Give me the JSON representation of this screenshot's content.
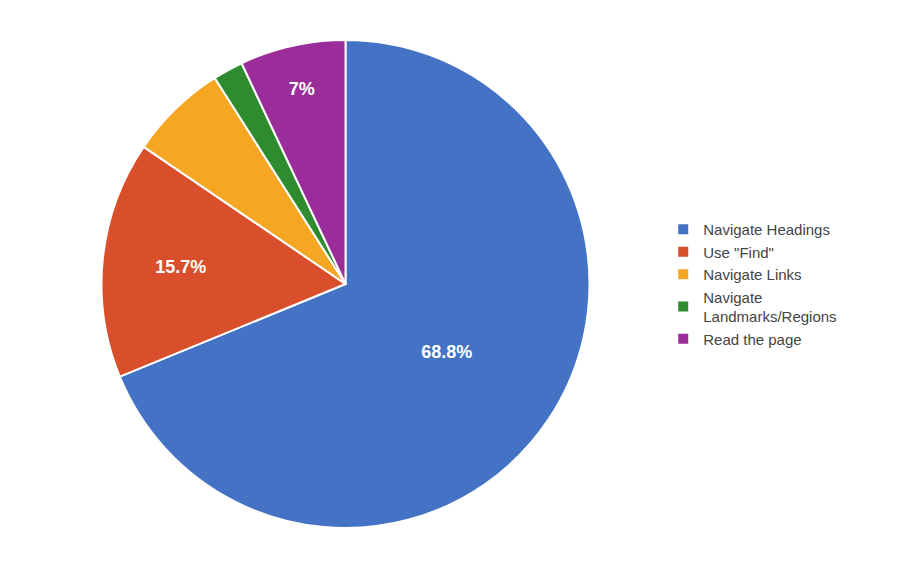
{
  "chart_data": {
    "type": "pie",
    "categories": [
      "Navigate Headings",
      "Use \"Find\"",
      "Navigate Links",
      "Navigate\nLandmarks/Regions",
      "Read the page"
    ],
    "values": [
      68.8,
      15.7,
      6.5,
      2.0,
      7.0
    ],
    "value_labels": [
      "68.8%",
      "15.7%",
      null,
      null,
      "7%"
    ],
    "colors": [
      "#4472C4",
      "#D94F2B",
      "#F5A623",
      "#2E8B2E",
      "#9B2D9B"
    ],
    "data_labels": true,
    "legend": "right"
  }
}
